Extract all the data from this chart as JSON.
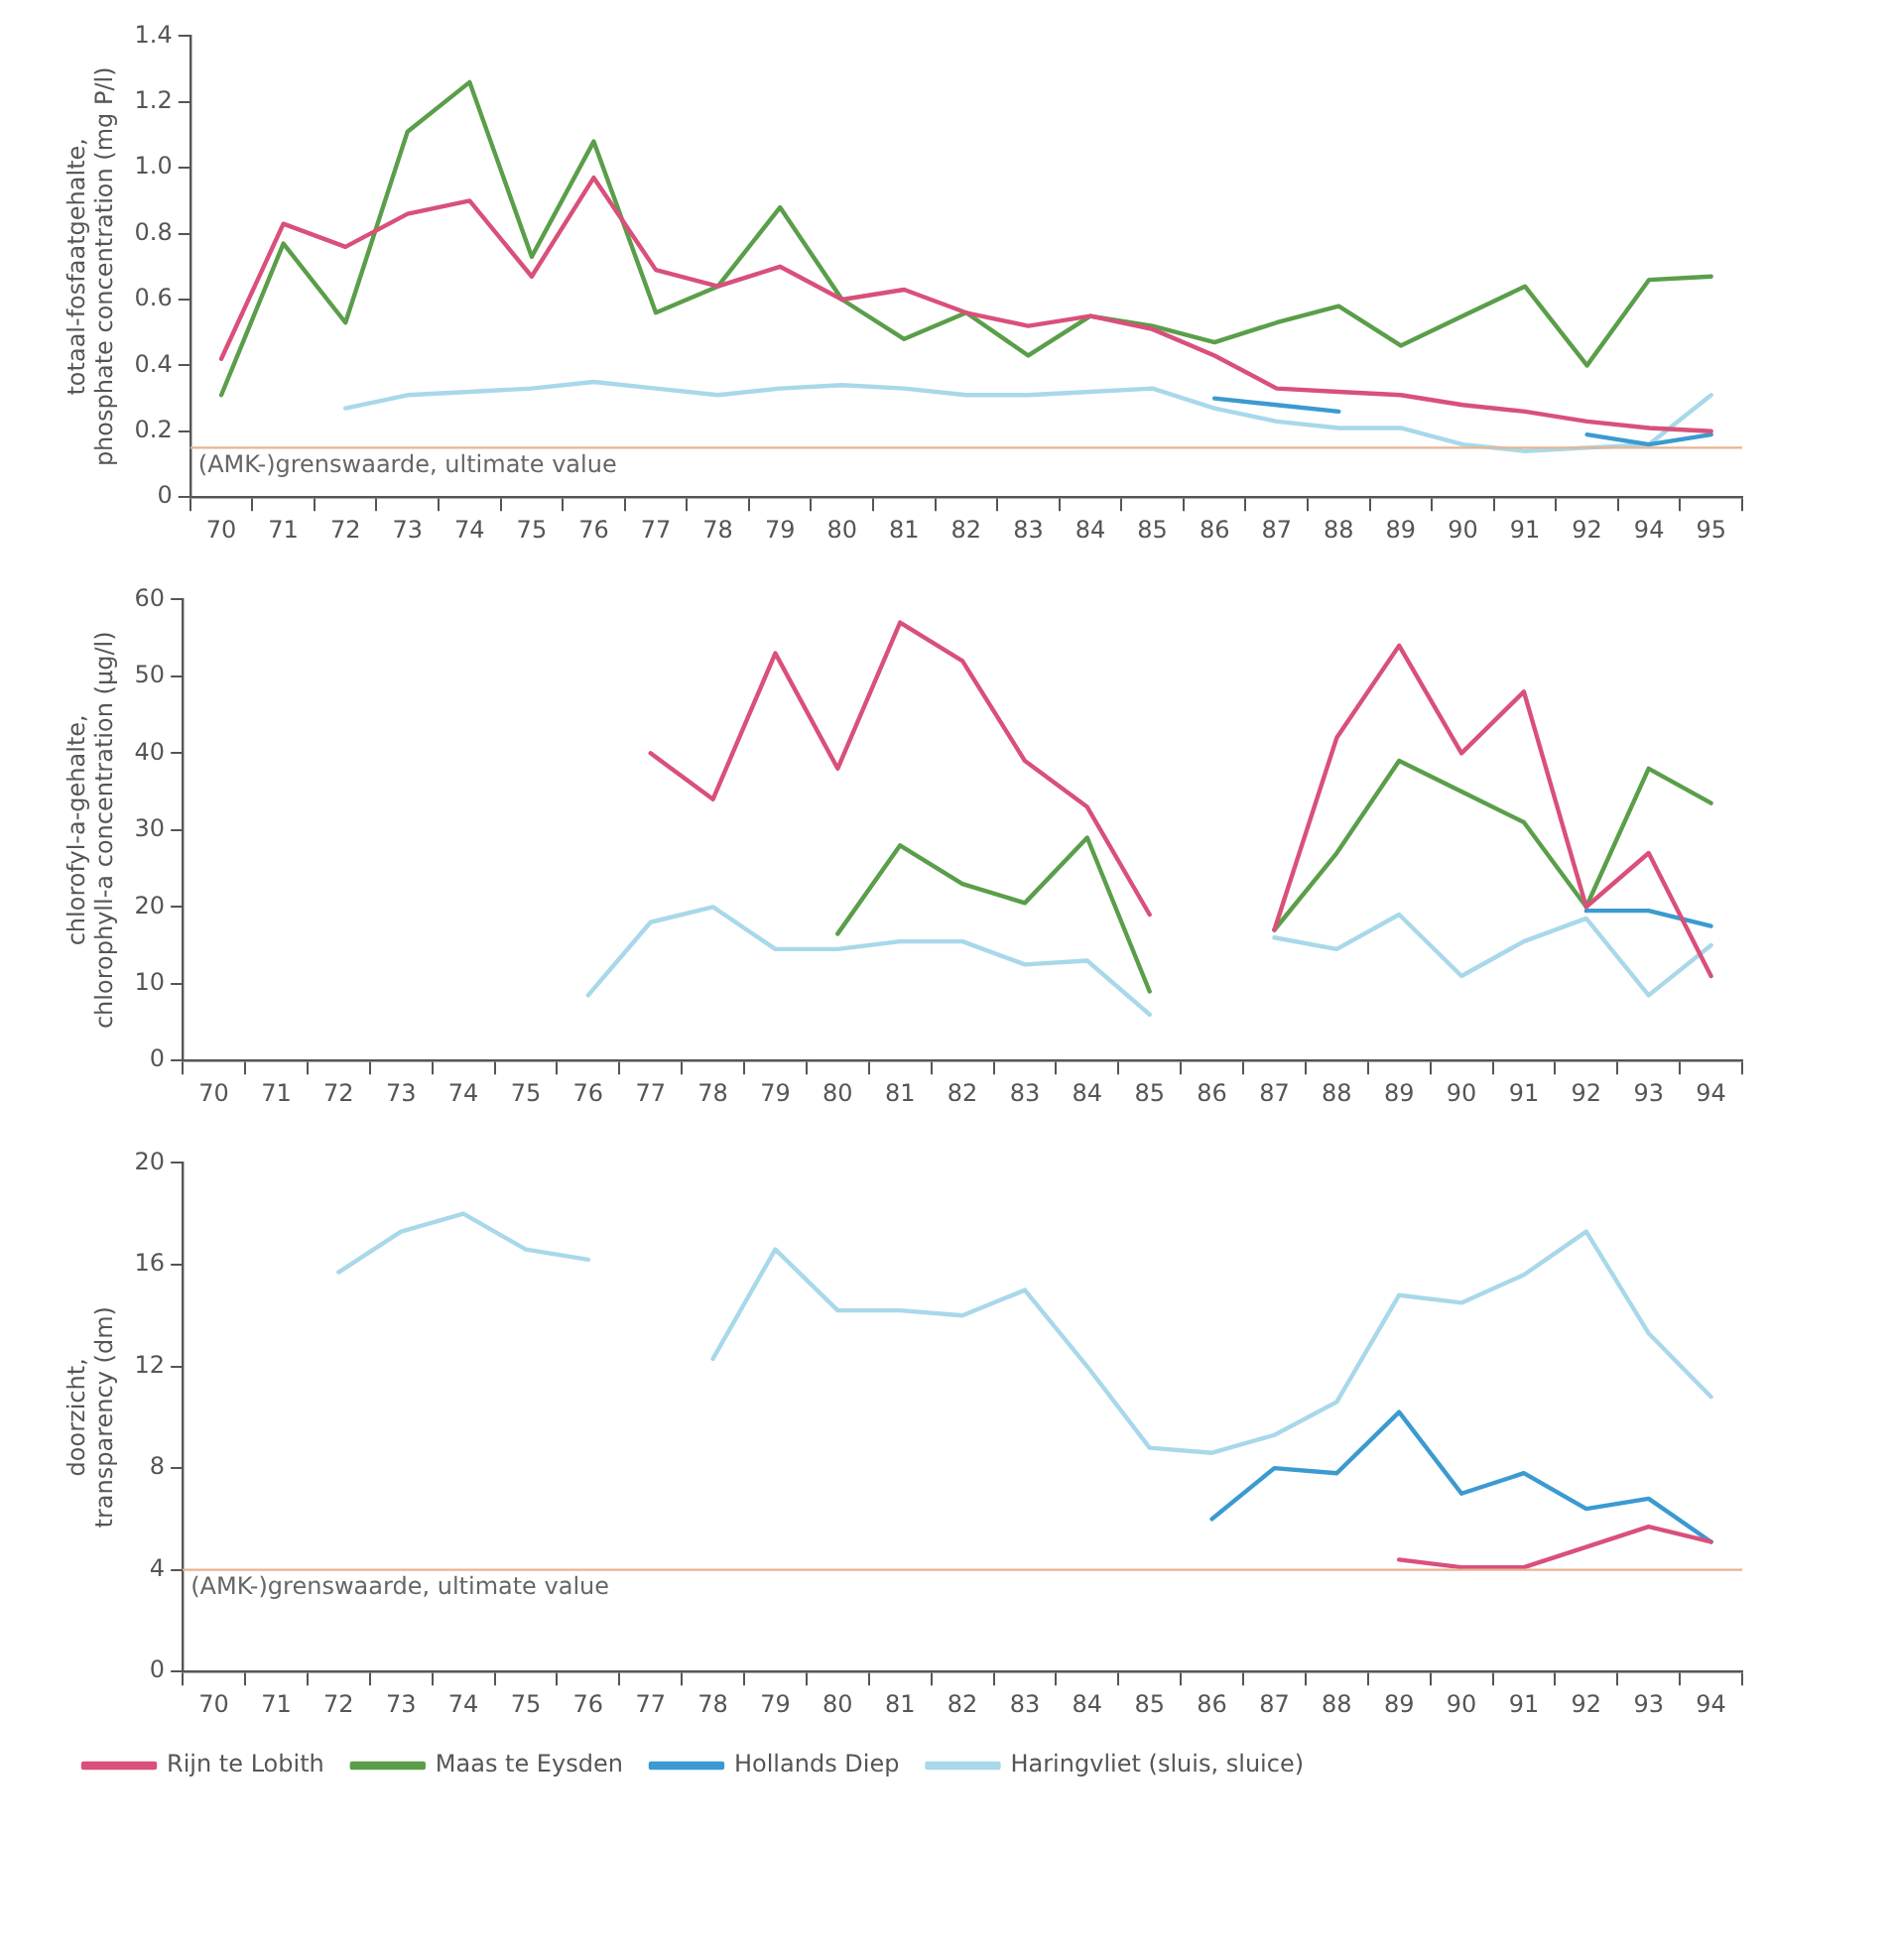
{
  "chart_data": [
    {
      "type": "line",
      "ylabel": "totaal-fosfaatgehalte, phosphate concentration (mg P/l)",
      "categories": [
        "70",
        "71",
        "72",
        "73",
        "74",
        "75",
        "76",
        "77",
        "78",
        "79",
        "80",
        "81",
        "82",
        "83",
        "84",
        "85",
        "86",
        "87",
        "88",
        "89",
        "90",
        "91",
        "92",
        "94",
        "95"
      ],
      "ylim": [
        0,
        1.4
      ],
      "yticks": [
        0,
        {
          "value": 0.2,
          "label": "0.2"
        },
        {
          "value": 0.4,
          "label": "0.4"
        },
        {
          "value": 0.6,
          "label": "0.6"
        },
        {
          "value": 0.8,
          "label": "0.8"
        },
        {
          "value": 1,
          "label": "1.0"
        },
        {
          "value": 1.2,
          "label": "1.2"
        },
        {
          "value": 1.4,
          "label": "1.4"
        }
      ],
      "grid": false,
      "legend": false,
      "marker": "none",
      "line_style": "solid",
      "ref_lines": [
        {
          "axis": "y",
          "value": 0.15,
          "label": "(AMK-)grenswaarde, ultimate value",
          "color": "#e8b48f"
        }
      ],
      "series": [
        {
          "color": "#d9507a",
          "values": [
            0.42,
            0.83,
            0.76,
            0.86,
            0.9,
            0.67,
            0.97,
            0.69,
            0.64,
            0.7,
            0.6,
            0.63,
            0.56,
            0.52,
            0.55,
            0.51,
            0.43,
            0.33,
            0.32,
            0.31,
            0.28,
            0.26,
            0.23,
            0.21,
            0.2
          ]
        },
        {
          "color": "#5a9e4a",
          "values": [
            0.31,
            0.77,
            0.53,
            1.11,
            1.26,
            0.73,
            1.08,
            0.56,
            0.64,
            0.88,
            0.6,
            0.48,
            0.56,
            0.43,
            0.55,
            0.52,
            0.47,
            0.53,
            0.58,
            0.46,
            0.55,
            0.64,
            0.4,
            0.66,
            0.67
          ]
        },
        {
          "color": "#3b9ad0",
          "values": [
            null,
            null,
            null,
            null,
            null,
            null,
            null,
            null,
            null,
            null,
            null,
            null,
            null,
            null,
            null,
            null,
            0.3,
            0.28,
            0.26,
            null,
            null,
            null,
            0.19,
            0.16,
            0.19
          ]
        },
        {
          "color": "#a8d8ea",
          "values": [
            null,
            null,
            0.27,
            0.31,
            0.32,
            0.33,
            0.35,
            0.33,
            0.31,
            0.33,
            0.34,
            0.33,
            0.31,
            0.31,
            0.32,
            0.33,
            0.27,
            0.23,
            0.21,
            0.21,
            0.16,
            0.14,
            0.15,
            0.16,
            0.31
          ]
        }
      ]
    },
    {
      "type": "line",
      "ylabel": "chlorofyl-a-gehalte, chlorophyll-a concentration (µg/l)",
      "categories": [
        "70",
        "71",
        "72",
        "73",
        "74",
        "75",
        "76",
        "77",
        "78",
        "79",
        "80",
        "81",
        "82",
        "83",
        "84",
        "85",
        "86",
        "87",
        "88",
        "89",
        "90",
        "91",
        "92",
        "93",
        "94"
      ],
      "ylim": [
        0,
        60
      ],
      "yticks": [
        0,
        10,
        20,
        30,
        40,
        50,
        60
      ],
      "grid": false,
      "legend": false,
      "marker": "none",
      "line_style": "solid",
      "series": [
        {
          "color": "#d9507a",
          "values": [
            null,
            null,
            null,
            null,
            null,
            null,
            null,
            40,
            34,
            53,
            38,
            57,
            52,
            39,
            33,
            19,
            null,
            17,
            42,
            54,
            40,
            48,
            20,
            27,
            11
          ]
        },
        {
          "color": "#5a9e4a",
          "values": [
            null,
            null,
            null,
            null,
            null,
            null,
            null,
            null,
            null,
            null,
            16.5,
            28,
            23,
            20.5,
            29,
            9,
            null,
            17,
            27,
            39,
            35,
            31,
            20,
            38,
            33.5
          ]
        },
        {
          "color": "#3b9ad0",
          "values": [
            null,
            null,
            null,
            null,
            null,
            null,
            null,
            null,
            null,
            null,
            null,
            null,
            null,
            null,
            null,
            null,
            null,
            null,
            null,
            null,
            null,
            null,
            19.5,
            19.5,
            17.5
          ]
        },
        {
          "color": "#a8d8ea",
          "values": [
            null,
            null,
            null,
            null,
            null,
            null,
            8.5,
            18,
            20,
            14.5,
            14.5,
            15.5,
            15.5,
            12.5,
            13,
            6,
            null,
            16,
            14.5,
            19,
            11,
            15.5,
            18.5,
            8.5,
            15
          ]
        }
      ]
    },
    {
      "type": "line",
      "ylabel": "doorzicht, transparency (dm)",
      "categories": [
        "70",
        "71",
        "72",
        "73",
        "74",
        "75",
        "76",
        "77",
        "78",
        "79",
        "80",
        "81",
        "82",
        "83",
        "84",
        "85",
        "86",
        "87",
        "88",
        "89",
        "90",
        "91",
        "92",
        "93",
        "94"
      ],
      "ylim": [
        0,
        20
      ],
      "yticks": [
        0,
        4,
        8,
        12,
        16,
        20
      ],
      "grid": false,
      "legend": "bottom",
      "marker": "none",
      "line_style": "solid",
      "ref_lines": [
        {
          "axis": "y",
          "value": 4,
          "label": "(AMK-)grenswaarde, ultimate value",
          "color": "#e8b48f"
        }
      ],
      "series": [
        {
          "name": "Rijn te Lobith",
          "color": "#d9507a",
          "values": [
            null,
            null,
            null,
            null,
            null,
            null,
            null,
            null,
            null,
            null,
            null,
            null,
            null,
            null,
            null,
            null,
            null,
            null,
            null,
            4.4,
            4.1,
            4.1,
            4.9,
            5.7,
            5.1
          ]
        },
        {
          "name": "Maas te Eysden",
          "color": "#5a9e4a",
          "values": [
            null,
            null,
            null,
            null,
            null,
            null,
            null,
            null,
            null,
            null,
            null,
            null,
            null,
            null,
            null,
            null,
            null,
            null,
            null,
            null,
            null,
            null,
            null,
            null,
            null
          ]
        },
        {
          "name": "Hollands Diep",
          "color": "#3b9ad0",
          "values": [
            null,
            null,
            null,
            null,
            null,
            null,
            null,
            null,
            null,
            null,
            null,
            null,
            null,
            null,
            null,
            null,
            6,
            8,
            7.8,
            10.2,
            7,
            7.8,
            6.4,
            6.8,
            5.1
          ]
        },
        {
          "name": "Haringvliet (sluis, sluice)",
          "color": "#a8d8ea",
          "values": [
            null,
            null,
            15.7,
            17.3,
            18,
            16.6,
            16.2,
            null,
            12.3,
            16.6,
            14.2,
            14.2,
            14,
            15,
            12,
            8.8,
            8.6,
            9.3,
            10.6,
            14.8,
            14.5,
            15.6,
            17.3,
            13.3,
            10.8
          ]
        }
      ]
    }
  ]
}
